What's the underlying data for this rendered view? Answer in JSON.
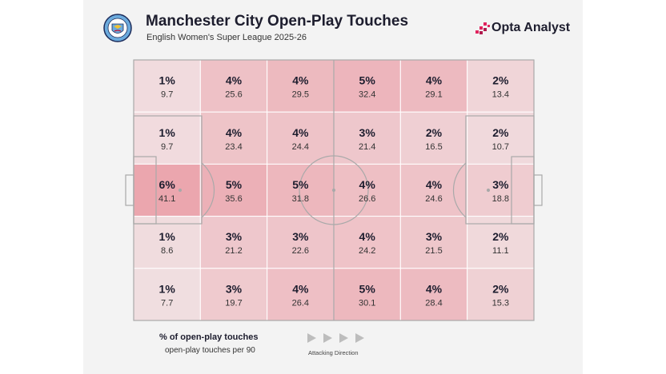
{
  "header": {
    "title": "Manchester City Open-Play Touches",
    "subtitle": "English Women's Super League 2025-26",
    "brand": "Opta Analyst",
    "crest_lettering": "MANCHESTER CITY"
  },
  "colors": {
    "cell_base": "#e45a6a",
    "line": "#a9a9a9",
    "text": "#1d1d2e",
    "brand_accent": "#e0245e"
  },
  "chart_data": {
    "type": "heatmap",
    "rows": 5,
    "cols": 6,
    "percent": [
      [
        "1%",
        "4%",
        "4%",
        "5%",
        "4%",
        "2%"
      ],
      [
        "1%",
        "4%",
        "4%",
        "3%",
        "2%",
        "2%"
      ],
      [
        "6%",
        "5%",
        "5%",
        "4%",
        "4%",
        "3%"
      ],
      [
        "1%",
        "3%",
        "3%",
        "4%",
        "3%",
        "2%"
      ],
      [
        "1%",
        "3%",
        "4%",
        "5%",
        "4%",
        "2%"
      ]
    ],
    "per90": [
      [
        "9.7",
        "25.6",
        "29.5",
        "32.4",
        "29.1",
        "13.4"
      ],
      [
        "9.7",
        "23.4",
        "24.4",
        "21.4",
        "16.5",
        "10.7"
      ],
      [
        "41.1",
        "35.6",
        "31.8",
        "26.6",
        "24.6",
        "18.8"
      ],
      [
        "8.6",
        "21.2",
        "22.6",
        "24.2",
        "21.5",
        "11.1"
      ],
      [
        "7.7",
        "19.7",
        "26.4",
        "30.1",
        "28.4",
        "15.3"
      ]
    ],
    "value_range": [
      0,
      41.1
    ],
    "legend_title": "% of open-play touches",
    "legend_subtitle": "open-play touches per 90",
    "direction_label": "Attacking Direction"
  }
}
